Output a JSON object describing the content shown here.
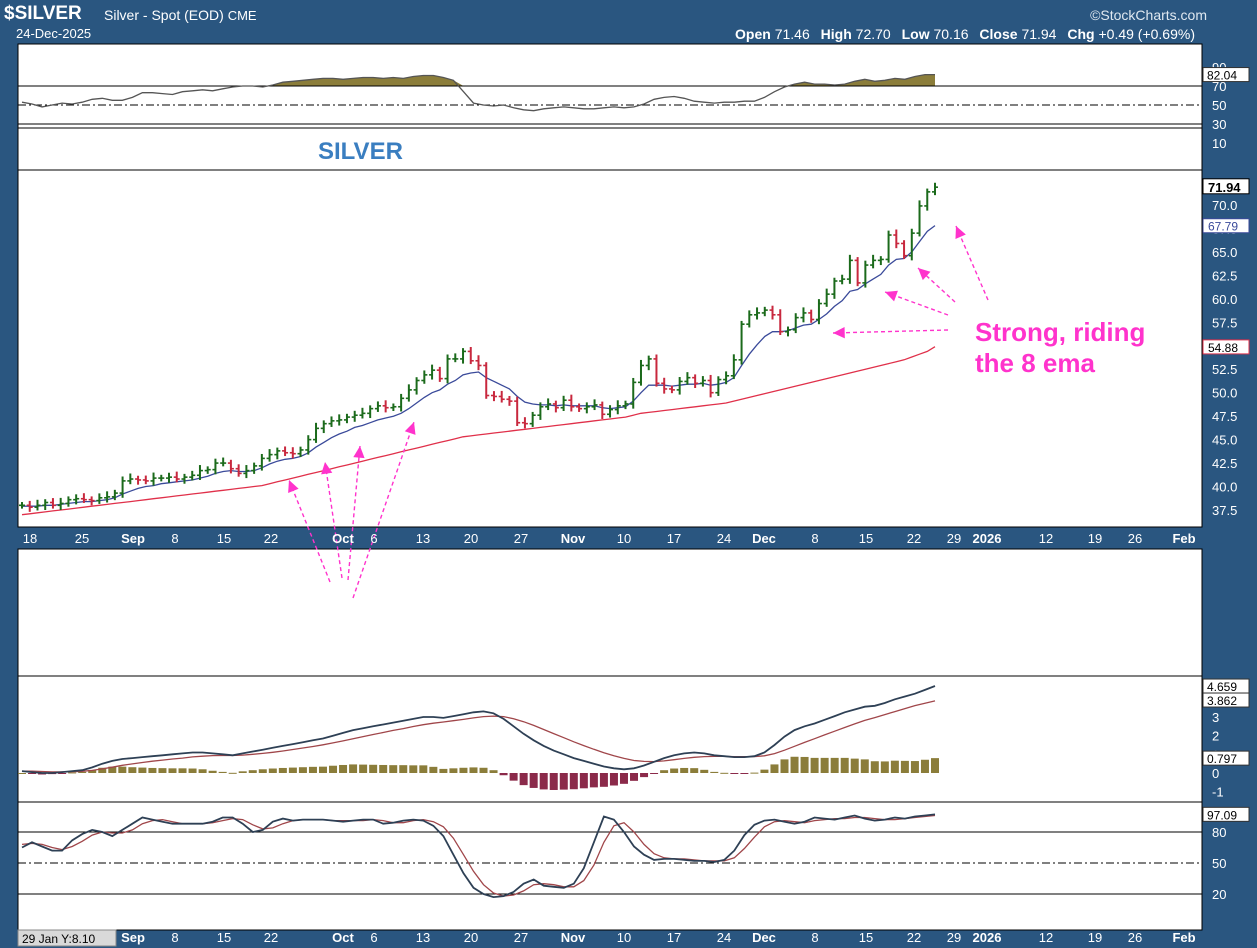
{
  "header": {
    "symbol": "$SILVER",
    "description": "Silver - Spot (EOD)",
    "exchange": "CME",
    "date": "24-Dec-2025",
    "brand": "©StockCharts.com",
    "open_label": "Open",
    "open": "71.46",
    "high_label": "High",
    "high": "72.70",
    "low_label": "Low",
    "low": "70.16",
    "close_label": "Close",
    "close": "71.94",
    "chg_label": "Chg",
    "chg": "+0.49 (+0.69%)"
  },
  "colors": {
    "frame": "#2a5680",
    "panel_bg": "#ffffff",
    "up": "#1b6a1b",
    "down": "#c8283e",
    "ema8": "#3a4a9a",
    "ma_long": "#e0304a",
    "annotation": "#ff33cc",
    "rsi_fill": "#8b7d3a",
    "hist_pos": "#8b7d3a",
    "hist_neg": "#8b2a4a",
    "macd": "#2e4055",
    "signal": "#a0464a",
    "label": "#3a7ec0"
  },
  "chart_data": [
    {
      "type": "line",
      "panel": "rsi",
      "ylim": [
        0,
        100
      ],
      "ticks": [
        "90",
        "70",
        "50",
        "30",
        "10"
      ],
      "levels": [
        70,
        50,
        30
      ],
      "last_value": "82.04",
      "values": [
        53,
        51,
        48,
        50,
        52,
        51,
        53,
        56,
        57,
        55,
        55,
        58,
        63,
        63,
        62,
        61,
        64,
        65,
        66,
        65,
        67,
        69,
        70,
        70,
        69,
        71,
        74,
        75,
        76,
        77,
        78,
        78,
        77,
        78,
        79,
        79,
        78,
        79,
        78,
        80,
        81,
        81,
        79,
        76,
        64,
        52,
        50,
        49,
        50,
        47,
        45,
        44,
        46,
        47,
        48,
        47,
        46,
        46,
        47,
        48,
        47,
        48,
        51,
        56,
        58,
        59,
        57,
        54,
        53,
        52,
        53,
        53,
        54,
        54,
        58,
        64,
        69,
        72,
        74,
        72,
        72,
        71,
        72,
        75,
        77,
        75,
        76,
        78,
        77,
        80,
        82,
        82
      ]
    },
    {
      "type": "bar",
      "panel": "price",
      "title": "SILVER",
      "ylim": [
        36,
        73
      ],
      "ticks": [
        "70.0",
        "67.5",
        "65.0",
        "62.5",
        "60.0",
        "57.5",
        "55.0",
        "52.5",
        "50.0",
        "47.5",
        "45.0",
        "42.5",
        "40.0",
        "37.5"
      ],
      "last_close": "71.94",
      "ema8_last": "67.79",
      "ma_last": "54.88",
      "x_labels": [
        "18",
        "25",
        "Sep",
        "8",
        "15",
        "22",
        "Oct",
        "6",
        "13",
        "20",
        "27",
        "Nov",
        "10",
        "17",
        "24",
        "Dec",
        "8",
        "15",
        "22",
        "29",
        "2026",
        "12",
        "19",
        "26",
        "Feb"
      ],
      "close": [
        38.0,
        37.8,
        38.0,
        38.3,
        38.0,
        38.2,
        38.6,
        38.7,
        38.6,
        38.5,
        38.8,
        38.9,
        39.3,
        40.6,
        40.8,
        40.7,
        40.6,
        40.9,
        40.9,
        41.0,
        40.8,
        41.0,
        41.2,
        41.7,
        41.8,
        42.5,
        42.5,
        41.9,
        41.4,
        41.7,
        42.2,
        43.0,
        43.4,
        43.8,
        43.6,
        43.5,
        43.9,
        45.0,
        46.2,
        46.7,
        47.0,
        47.1,
        47.4,
        47.6,
        47.8,
        48.3,
        48.6,
        48.4,
        48.5,
        49.4,
        50.3,
        51.3,
        51.9,
        52.4,
        51.5,
        53.6,
        53.6,
        54.4,
        53.4,
        52.9,
        49.7,
        49.6,
        49.3,
        49.1,
        46.8,
        46.7,
        47.6,
        48.5,
        48.8,
        48.4,
        49.2,
        48.5,
        48.3,
        48.5,
        48.7,
        47.7,
        48.2,
        48.6,
        48.8,
        51.1,
        52.9,
        53.6,
        51.0,
        50.4,
        50.3,
        51.2,
        51.6,
        51.0,
        51.3,
        50.0,
        51.4,
        51.8,
        53.5,
        57.3,
        58.3,
        58.5,
        58.8,
        58.3,
        56.5,
        56.7,
        58.0,
        58.5,
        57.8,
        59.5,
        60.5,
        61.9,
        62.1,
        64.1,
        61.7,
        63.6,
        64.1,
        64.2,
        66.8,
        65.9,
        64.6,
        67.0,
        69.9,
        71.4,
        71.9
      ],
      "ema8": [
        37.9,
        37.9,
        37.9,
        38.0,
        38.0,
        38.1,
        38.2,
        38.3,
        38.4,
        38.4,
        38.5,
        38.6,
        38.8,
        39.2,
        39.5,
        39.8,
        40.0,
        40.1,
        40.3,
        40.4,
        40.5,
        40.6,
        40.7,
        40.9,
        41.1,
        41.4,
        41.6,
        41.7,
        41.6,
        41.6,
        41.7,
        42.0,
        42.4,
        42.7,
        42.9,
        43.0,
        43.2,
        43.6,
        44.2,
        44.7,
        45.2,
        45.6,
        45.9,
        46.3,
        46.5,
        46.8,
        47.1,
        47.3,
        47.5,
        47.8,
        48.3,
        48.9,
        49.5,
        50.0,
        50.3,
        50.9,
        51.3,
        51.9,
        52.1,
        52.2,
        51.6,
        51.2,
        50.8,
        50.4,
        49.6,
        49.0,
        48.8,
        48.7,
        48.7,
        48.6,
        48.7,
        48.6,
        48.6,
        48.6,
        48.6,
        48.4,
        48.3,
        48.4,
        48.5,
        49.1,
        50.0,
        50.8,
        50.8,
        50.8,
        50.7,
        50.8,
        50.9,
        50.9,
        51.0,
        50.8,
        50.9,
        51.1,
        51.6,
        52.9,
        54.1,
        55.1,
        56.0,
        56.5,
        56.5,
        56.6,
        56.9,
        57.2,
        57.3,
        57.8,
        58.4,
        59.2,
        59.8,
        60.8,
        61.0,
        61.6,
        62.1,
        62.6,
        63.6,
        64.2,
        64.3,
        65.0,
        66.1,
        67.2,
        67.8
      ],
      "ma_long": [
        37.0,
        37.1,
        37.2,
        37.3,
        37.4,
        37.5,
        37.6,
        37.7,
        37.8,
        37.9,
        38.0,
        38.1,
        38.2,
        38.3,
        38.4,
        38.5,
        38.6,
        38.7,
        38.8,
        38.9,
        39.0,
        39.1,
        39.2,
        39.3,
        39.4,
        39.5,
        39.6,
        39.7,
        39.8,
        39.9,
        40.0,
        40.1,
        40.3,
        40.5,
        40.7,
        40.9,
        41.1,
        41.3,
        41.5,
        41.7,
        41.9,
        42.1,
        42.3,
        42.5,
        42.7,
        42.9,
        43.1,
        43.3,
        43.5,
        43.7,
        43.9,
        44.1,
        44.3,
        44.5,
        44.7,
        44.9,
        45.1,
        45.3,
        45.4,
        45.5,
        45.6,
        45.7,
        45.8,
        45.9,
        46.0,
        46.1,
        46.2,
        46.3,
        46.4,
        46.5,
        46.6,
        46.7,
        46.8,
        46.9,
        47.0,
        47.1,
        47.2,
        47.3,
        47.4,
        47.6,
        47.8,
        47.9,
        48.0,
        48.1,
        48.2,
        48.3,
        48.4,
        48.5,
        48.6,
        48.7,
        48.8,
        48.9,
        49.1,
        49.3,
        49.5,
        49.7,
        49.9,
        50.1,
        50.3,
        50.5,
        50.7,
        50.9,
        51.1,
        51.3,
        51.5,
        51.7,
        51.9,
        52.1,
        52.3,
        52.5,
        52.7,
        52.9,
        53.1,
        53.3,
        53.5,
        53.8,
        54.1,
        54.4,
        54.9
      ],
      "annotation": [
        "Strong, riding",
        "the 8 ema"
      ]
    },
    {
      "type": "line",
      "panel": "macd",
      "ylim": [
        -1.5,
        5
      ],
      "ticks": [
        "3",
        "2",
        "1",
        "0",
        "-1"
      ],
      "last_macd": "4.659",
      "last_signal": "3.862",
      "last_hist": "0.797",
      "macd": [
        0.1,
        0.05,
        0.0,
        0.0,
        0.05,
        0.1,
        0.15,
        0.3,
        0.5,
        0.65,
        0.75,
        0.8,
        0.85,
        0.9,
        0.95,
        1.0,
        1.05,
        1.1,
        1.1,
        1.05,
        1.0,
        0.95,
        1.05,
        1.15,
        1.25,
        1.35,
        1.45,
        1.55,
        1.65,
        1.75,
        1.85,
        2.0,
        2.15,
        2.3,
        2.4,
        2.5,
        2.6,
        2.7,
        2.8,
        2.9,
        3.0,
        3.0,
        2.95,
        3.05,
        3.15,
        3.25,
        3.3,
        3.2,
        2.9,
        2.5,
        2.1,
        1.75,
        1.45,
        1.2,
        1.0,
        0.8,
        0.65,
        0.5,
        0.35,
        0.25,
        0.2,
        0.25,
        0.4,
        0.6,
        0.8,
        0.95,
        1.05,
        1.1,
        1.05,
        0.95,
        0.9,
        0.85,
        0.85,
        0.9,
        1.1,
        1.5,
        1.95,
        2.3,
        2.5,
        2.65,
        2.85,
        3.05,
        3.25,
        3.4,
        3.55,
        3.6,
        3.75,
        3.95,
        4.1,
        4.25,
        4.45,
        4.659
      ],
      "signal": [
        0.1,
        0.1,
        0.08,
        0.06,
        0.06,
        0.07,
        0.09,
        0.14,
        0.22,
        0.31,
        0.41,
        0.49,
        0.56,
        0.63,
        0.69,
        0.75,
        0.8,
        0.86,
        0.9,
        0.93,
        0.94,
        0.94,
        0.96,
        1.0,
        1.05,
        1.11,
        1.18,
        1.26,
        1.34,
        1.42,
        1.51,
        1.61,
        1.72,
        1.84,
        1.95,
        2.06,
        2.17,
        2.28,
        2.38,
        2.49,
        2.59,
        2.67,
        2.73,
        2.8,
        2.87,
        2.95,
        3.02,
        3.05,
        3.02,
        2.91,
        2.75,
        2.55,
        2.33,
        2.11,
        1.89,
        1.67,
        1.47,
        1.27,
        1.09,
        0.92,
        0.78,
        0.67,
        0.62,
        0.61,
        0.65,
        0.71,
        0.78,
        0.84,
        0.88,
        0.89,
        0.89,
        0.88,
        0.88,
        0.88,
        0.92,
        1.04,
        1.22,
        1.43,
        1.64,
        1.84,
        2.04,
        2.24,
        2.44,
        2.63,
        2.82,
        2.97,
        3.13,
        3.29,
        3.45,
        3.61,
        3.74,
        3.862
      ],
      "histogram": [
        0.0,
        -0.05,
        -0.08,
        -0.06,
        -0.01,
        0.03,
        0.06,
        0.16,
        0.28,
        0.34,
        0.34,
        0.31,
        0.29,
        0.27,
        0.26,
        0.25,
        0.25,
        0.24,
        0.2,
        0.12,
        0.06,
        0.01,
        0.09,
        0.15,
        0.2,
        0.24,
        0.27,
        0.29,
        0.31,
        0.33,
        0.34,
        0.39,
        0.43,
        0.46,
        0.45,
        0.44,
        0.43,
        0.42,
        0.42,
        0.41,
        0.41,
        0.33,
        0.22,
        0.25,
        0.28,
        0.3,
        0.28,
        0.15,
        -0.12,
        -0.41,
        -0.65,
        -0.8,
        -0.88,
        -0.91,
        -0.89,
        -0.87,
        -0.82,
        -0.77,
        -0.74,
        -0.67,
        -0.58,
        -0.42,
        -0.22,
        -0.01,
        0.15,
        0.24,
        0.27,
        0.26,
        0.17,
        0.06,
        0.01,
        -0.03,
        -0.03,
        0.02,
        0.18,
        0.46,
        0.73,
        0.87,
        0.86,
        0.81,
        0.81,
        0.81,
        0.81,
        0.77,
        0.73,
        0.63,
        0.62,
        0.66,
        0.65,
        0.64,
        0.71,
        0.797
      ]
    },
    {
      "type": "line",
      "panel": "stochastic",
      "ylim": [
        0,
        110
      ],
      "ticks": [
        "80",
        "50",
        "20"
      ],
      "levels": [
        80,
        50,
        20
      ],
      "last_k": "97.09",
      "k": [
        65,
        70,
        66,
        62,
        62,
        72,
        78,
        82,
        80,
        76,
        82,
        88,
        94,
        92,
        90,
        88,
        88,
        88,
        88,
        90,
        94,
        94,
        88,
        80,
        82,
        90,
        93,
        91,
        92,
        92,
        92,
        91,
        90,
        91,
        92,
        92,
        88,
        89,
        91,
        92,
        91,
        86,
        76,
        58,
        40,
        26,
        20,
        17,
        18,
        22,
        30,
        34,
        28,
        27,
        26,
        30,
        45,
        70,
        95,
        92,
        80,
        66,
        58,
        53,
        54,
        54,
        53,
        52,
        52,
        51,
        53,
        62,
        77,
        87,
        91,
        92,
        90,
        88,
        90,
        94,
        93,
        92,
        94,
        96,
        93,
        91,
        92,
        94,
        93,
        95,
        96,
        97
      ],
      "d": [
        68,
        69,
        68,
        65,
        63,
        66,
        71,
        77,
        80,
        79,
        79,
        82,
        88,
        91,
        92,
        90,
        88,
        88,
        88,
        89,
        91,
        93,
        92,
        87,
        83,
        84,
        88,
        91,
        92,
        92,
        92,
        91,
        91,
        91,
        91,
        92,
        91,
        89,
        89,
        91,
        92,
        90,
        85,
        74,
        58,
        42,
        29,
        21,
        18,
        19,
        23,
        29,
        30,
        29,
        27,
        27,
        33,
        48,
        70,
        86,
        89,
        80,
        68,
        59,
        55,
        54,
        54,
        53,
        52,
        52,
        52,
        55,
        64,
        75,
        85,
        90,
        91,
        90,
        89,
        91,
        92,
        93,
        93,
        94,
        94,
        93,
        92,
        92,
        93,
        94,
        95,
        96
      ]
    }
  ],
  "xaxis_lower": {
    "cursor_label": "29 Jan Y:8.10",
    "labels": [
      "Sep",
      "8",
      "15",
      "22",
      "Oct",
      "6",
      "13",
      "20",
      "27",
      "Nov",
      "10",
      "17",
      "24",
      "Dec",
      "8",
      "15",
      "22",
      "29",
      "2026",
      "12",
      "19",
      "26",
      "Feb"
    ]
  }
}
